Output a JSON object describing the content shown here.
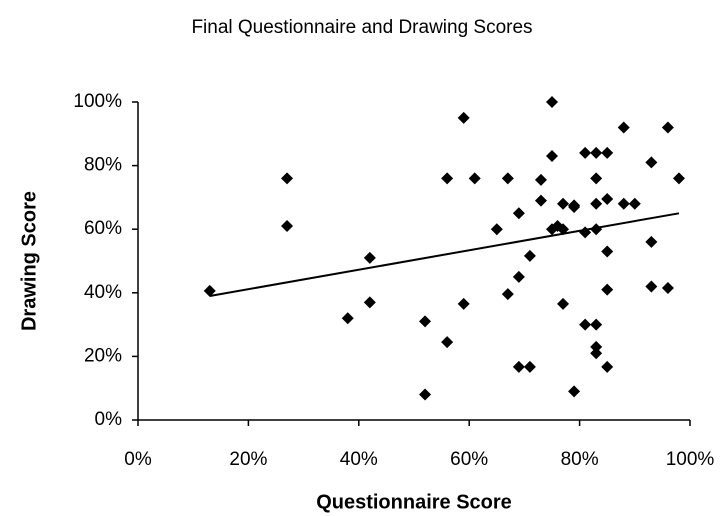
{
  "chart_data": {
    "type": "scatter",
    "title": "Final Questionnaire and Drawing Scores",
    "x_label": "Questionnaire Score",
    "y_label": "Drawing Score",
    "color": "#000000",
    "xlim": [
      0,
      100
    ],
    "ylim": [
      0,
      100
    ],
    "xticks": [
      {
        "value": 0,
        "label": "0%"
      },
      {
        "value": 20,
        "label": "20%"
      },
      {
        "value": 40,
        "label": "40%"
      },
      {
        "value": 60,
        "label": "60%"
      },
      {
        "value": 80,
        "label": "80%"
      },
      {
        "value": 100,
        "label": "100%"
      }
    ],
    "yticks": [
      {
        "value": 0,
        "label": "0%"
      },
      {
        "value": 20,
        "label": "20%"
      },
      {
        "value": 40,
        "label": "40%"
      },
      {
        "value": 60,
        "label": "60%"
      },
      {
        "value": 80,
        "label": "80%"
      },
      {
        "value": 100,
        "label": "100%"
      }
    ],
    "x": [
      13,
      27,
      27,
      42,
      42,
      38,
      52,
      52,
      56,
      56,
      59,
      59,
      61,
      65,
      67,
      67,
      69,
      69,
      69,
      71,
      71,
      73,
      73,
      75,
      75,
      75,
      76,
      77,
      77,
      77,
      79,
      79,
      79,
      81,
      81,
      81,
      83,
      83,
      83,
      83,
      83,
      83,
      83,
      85,
      85,
      85,
      85,
      85,
      88,
      88,
      90,
      93,
      93,
      93,
      96,
      96,
      98
    ],
    "y": [
      40.6,
      76,
      61,
      51,
      37,
      32,
      31,
      8,
      24.5,
      76,
      95,
      36.5,
      76,
      60,
      76,
      39.6,
      65,
      45,
      16.7,
      16.7,
      51.6,
      75.5,
      69,
      100,
      83,
      60,
      61,
      60,
      36.5,
      68,
      67.5,
      67,
      9,
      84,
      59,
      30,
      84,
      76,
      68,
      60,
      30,
      23,
      21,
      84,
      69.5,
      53,
      41,
      16.7,
      68,
      92,
      68,
      81,
      56,
      42,
      92,
      41.5,
      76
    ],
    "trendline": {
      "x": [
        13,
        98
      ],
      "y": [
        39,
        65
      ]
    }
  }
}
